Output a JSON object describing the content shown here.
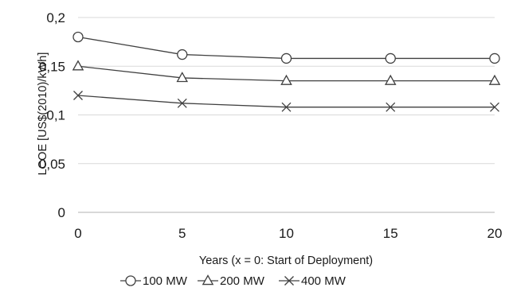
{
  "chart_data": {
    "type": "line",
    "title": "",
    "xlabel": "Years (x = 0: Start of Deployment)",
    "ylabel": "LCOE [US$(2010)/kWh]",
    "x": [
      0,
      5,
      10,
      15,
      20
    ],
    "x_ticks": [
      "0",
      "5",
      "10",
      "15",
      "20"
    ],
    "y_ticks": [
      "0",
      "0,05",
      "0,1",
      "0,15",
      "0,2"
    ],
    "xlim": [
      0,
      20
    ],
    "ylim": [
      0,
      0.2
    ],
    "grid": "horizontal",
    "legend_position": "bottom",
    "series": [
      {
        "name": "100 MW",
        "marker": "circle",
        "values": [
          0.18,
          0.162,
          0.158,
          0.158,
          0.158
        ]
      },
      {
        "name": "200 MW",
        "marker": "triangle",
        "values": [
          0.15,
          0.138,
          0.135,
          0.135,
          0.135
        ]
      },
      {
        "name": "400 MW",
        "marker": "x",
        "values": [
          0.12,
          0.112,
          0.108,
          0.108,
          0.108
        ]
      }
    ],
    "colors": {
      "line": "#404040",
      "grid": "#d9d9d9",
      "axis": "#b0b0b0"
    }
  }
}
